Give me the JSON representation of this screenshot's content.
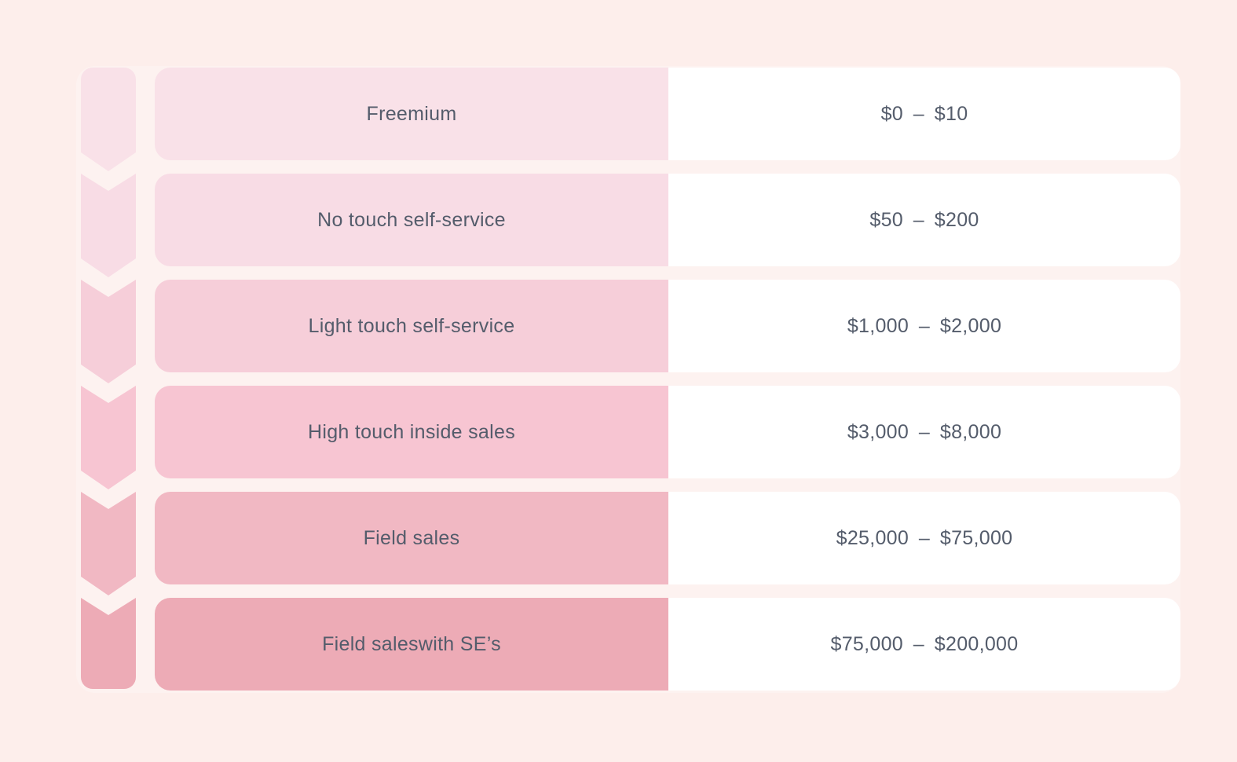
{
  "diagram": {
    "type": "chevron-tier-table",
    "description_visible_content_only": true,
    "rows": [
      {
        "label": "Freemium",
        "value": "$0 – $10"
      },
      {
        "label": "No touch self-service",
        "value": "$50 – $200"
      },
      {
        "label": "Light touch self-service",
        "value": "$1,000 – $2,000"
      },
      {
        "label": "High touch inside sales",
        "value": "$3,000 – $8,000"
      },
      {
        "label": "Field sales",
        "value": "$25,000 – $75,000"
      },
      {
        "label": "Field saleswith SE’s",
        "value": "$75,000 – $200,000"
      }
    ],
    "icons": [
      {
        "name": "chevron-down-icon",
        "count": 6,
        "meaning": "progression from low-touch to high-touch sales model"
      }
    ]
  },
  "colors": {
    "page_bg": "#fdeeeb",
    "panel_bg": "#fdf2f0",
    "value_bg": "#ffffff",
    "text_color": "#545c6b",
    "row_shades": [
      "#f9e1e8",
      "#f8dce5",
      "#f6ced9",
      "#f7c5d2",
      "#f1b8c3",
      "#edabb6"
    ]
  }
}
